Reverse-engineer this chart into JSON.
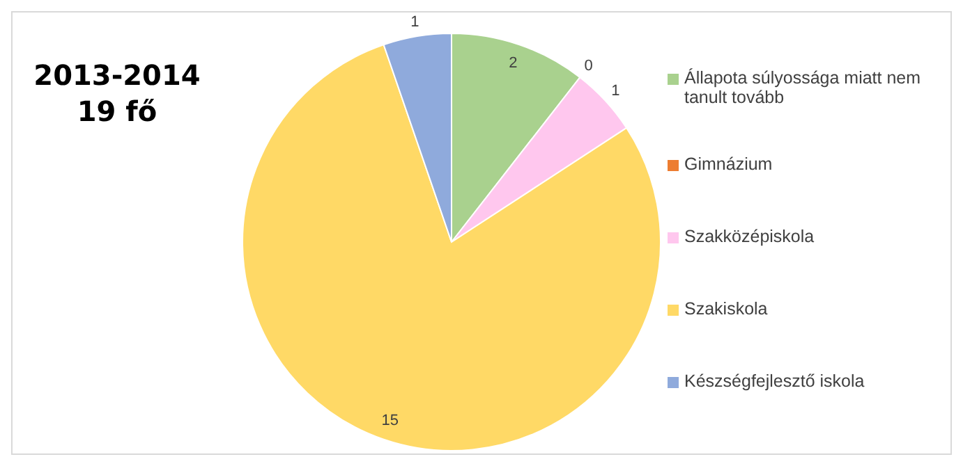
{
  "chart_data": {
    "type": "pie",
    "title": "2013-2014\n19 fő",
    "categories": [
      "Állapota súlyossága miatt nem tanult tovább",
      "Gimnázium",
      "Szakközépiskola",
      "Szakiskola",
      "Készségfejlesztő iskola"
    ],
    "values": [
      2,
      0,
      1,
      15,
      1
    ],
    "colors": [
      "#a9d18e",
      "#ed7d31",
      "#ffc7ee",
      "#ffd966",
      "#8faadc"
    ],
    "value_labels": [
      "2",
      "0",
      "1",
      "15",
      "1"
    ],
    "legend": "right"
  }
}
